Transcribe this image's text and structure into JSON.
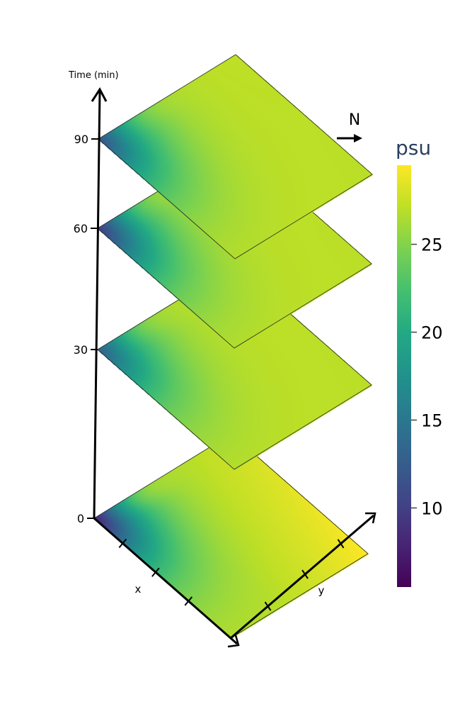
{
  "chart_data": {
    "type": "heatmap",
    "subtype": "stacked-3d-slices",
    "z_axis": {
      "label": "Time (min)",
      "ticks": [
        0,
        30,
        60,
        90
      ],
      "range": [
        0,
        110
      ]
    },
    "x_axis": {
      "label": "x"
    },
    "y_axis": {
      "label": "y"
    },
    "north_label": "N",
    "colorbar": {
      "title": "psu",
      "colorscale": "viridis",
      "range": [
        5.5,
        29.5
      ],
      "ticks": [
        10,
        15,
        20,
        25
      ]
    },
    "slices": [
      {
        "time": 0,
        "fresh_plume_min_psu": 8,
        "bright_band_max_psu": 29,
        "far_corner_psu": 29.5,
        "bright_band_strength": 1.0
      },
      {
        "time": 30,
        "fresh_plume_min_psu": 13,
        "bright_band_max_psu": 28.5,
        "far_corner_psu": 27,
        "bright_band_strength": 0.7
      },
      {
        "time": 60,
        "fresh_plume_min_psu": 10,
        "bright_band_max_psu": 28.5,
        "far_corner_psu": 27,
        "bright_band_strength": 0.7
      },
      {
        "time": 90,
        "fresh_plume_min_psu": 12,
        "bright_band_max_psu": 28.5,
        "far_corner_psu": 27,
        "bright_band_strength": 0.6
      }
    ]
  }
}
